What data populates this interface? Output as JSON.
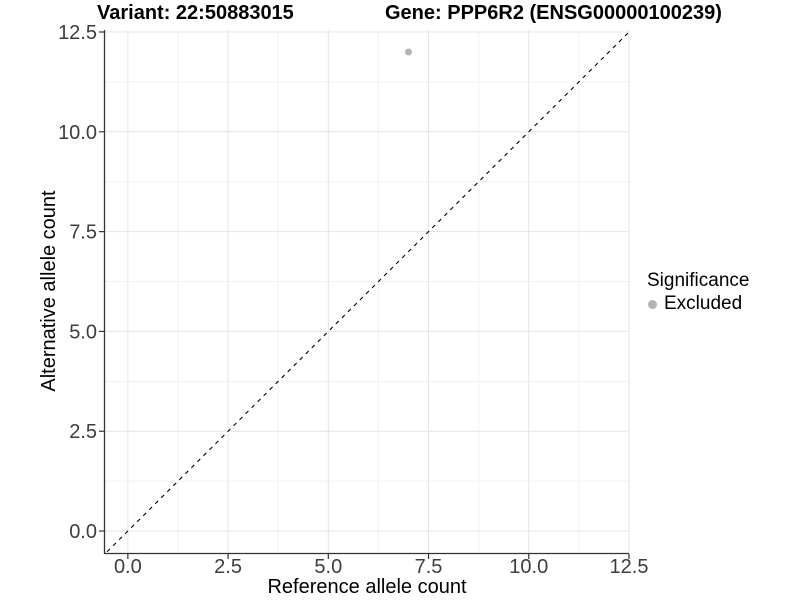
{
  "chart_data": {
    "type": "scatter",
    "title": {
      "left": "Variant: 22:50883015",
      "right": "Gene: PPP6R2 (ENSG00000100239)"
    },
    "xlabel": "Reference allele count",
    "ylabel": "Alternative allele count",
    "xlim": [
      -0.57,
      12.5
    ],
    "ylim": [
      -0.55,
      12.55
    ],
    "x_ticks": [
      {
        "value": 0,
        "label": "0.0"
      },
      {
        "value": 2.5,
        "label": "2.5"
      },
      {
        "value": 5,
        "label": "5.0"
      },
      {
        "value": 7.5,
        "label": "7.5"
      },
      {
        "value": 10,
        "label": "10.0"
      },
      {
        "value": 12.5,
        "label": "12.5"
      }
    ],
    "y_ticks": [
      {
        "value": 0,
        "label": "0.0"
      },
      {
        "value": 2.5,
        "label": "2.5"
      },
      {
        "value": 5,
        "label": "5.0"
      },
      {
        "value": 7.5,
        "label": "7.5"
      },
      {
        "value": 10,
        "label": "10.0"
      },
      {
        "value": 12.5,
        "label": "12.5"
      }
    ],
    "x_minor": [
      1.25,
      3.75,
      6.25,
      8.75,
      11.25
    ],
    "y_minor": [
      1.25,
      3.75,
      6.25,
      8.75,
      11.25
    ],
    "grid": true,
    "series": [
      {
        "name": "Excluded",
        "color": "#b4b4b4",
        "points": [
          {
            "x": 7,
            "y": 12
          }
        ]
      }
    ],
    "reference_line": {
      "type": "identity",
      "slope": 1,
      "intercept": 0,
      "style": "dashed",
      "color": "#000000"
    },
    "legend": {
      "position": "right",
      "title": "Significance",
      "items": [
        {
          "label": "Excluded",
          "color": "#b3b3b3"
        }
      ]
    },
    "style": {
      "grid_major_color": "#e4e4e4",
      "grid_minor_color": "#f1f1f1",
      "axis_line_color": "#333333",
      "tick_color": "#333333",
      "tick_label_color": "#3d3d3d",
      "point_radius": 3.5,
      "background": "#ffffff"
    }
  }
}
